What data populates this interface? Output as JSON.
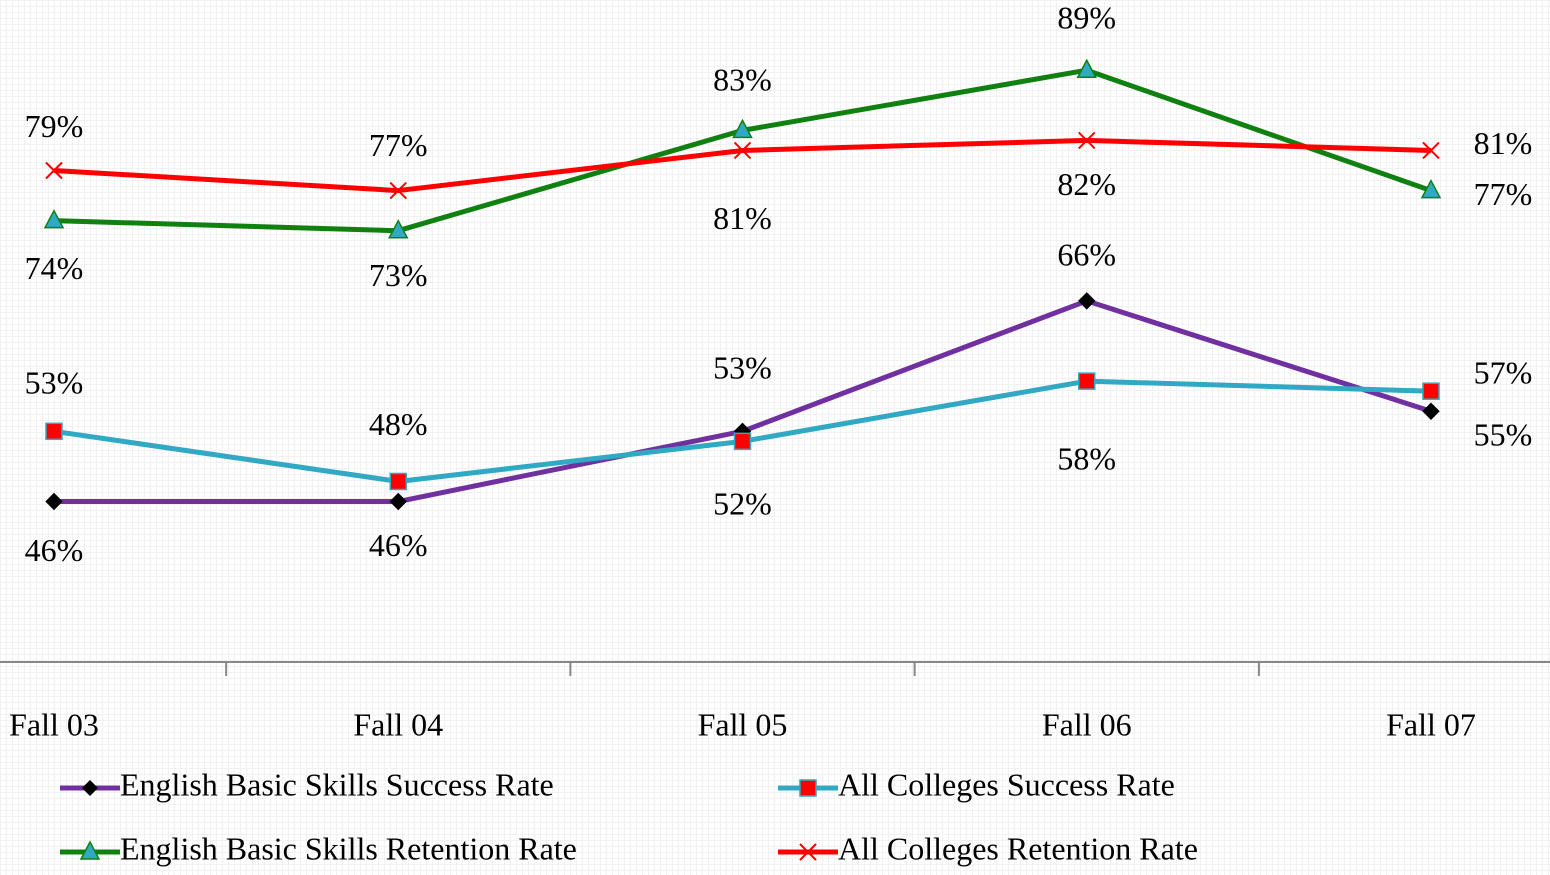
{
  "chart_data": {
    "type": "line",
    "categories": [
      "Fall 03",
      "Fall 04",
      "Fall 05",
      "Fall 06",
      "Fall 07"
    ],
    "ylim": [
      30,
      96
    ],
    "series": [
      {
        "name": "English Basic Skills Success Rate",
        "color": "#7030a0",
        "marker": "diamond",
        "marker_color": "#000000",
        "values": [
          46,
          46,
          53,
          66,
          55
        ],
        "value_labels": [
          "46%",
          "46%",
          "53%",
          "66%",
          "55%"
        ]
      },
      {
        "name": "All Colleges Success Rate",
        "color": "#31a9c4",
        "marker": "square",
        "marker_color": "#ff0000",
        "values": [
          53,
          48,
          52,
          58,
          57
        ],
        "value_labels": [
          "53%",
          "48%",
          "52%",
          "58%",
          "57%"
        ]
      },
      {
        "name": "English Basic Skills Retention Rate",
        "color": "#108010",
        "marker": "triangle",
        "marker_color": "#31a9c4",
        "values": [
          74,
          73,
          83,
          89,
          77
        ],
        "value_labels": [
          "74%",
          "73%",
          "83%",
          "89%",
          "77%"
        ]
      },
      {
        "name": "All Colleges Retention Rate",
        "color": "#ff0000",
        "marker": "x",
        "marker_color": "#ff0000",
        "values": [
          79,
          77,
          81,
          82,
          81
        ],
        "value_labels": [
          "79%",
          "77%",
          "81%",
          "82%",
          "81%"
        ]
      }
    ]
  }
}
